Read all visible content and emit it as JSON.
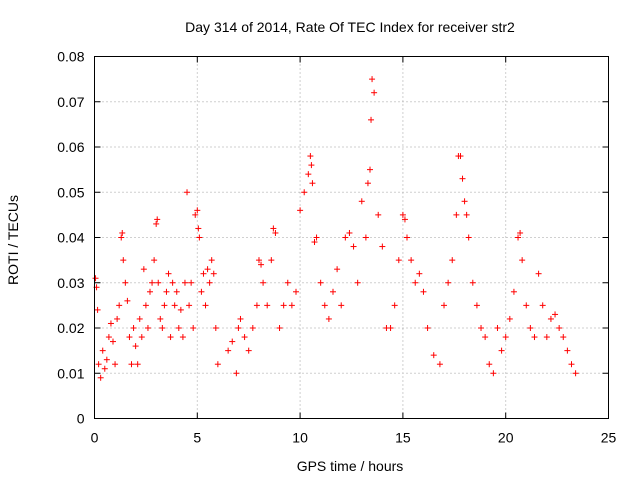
{
  "chart_data": {
    "type": "scatter",
    "title": "Day 314 of 2014, Rate Of TEC Index for receiver str2",
    "xlabel": "GPS time / hours",
    "ylabel": "ROTI / TECUs",
    "xlim": [
      0,
      25
    ],
    "ylim": [
      0,
      0.08
    ],
    "xticks": [
      0,
      5,
      10,
      15,
      20,
      25
    ],
    "yticks": [
      0,
      0.01,
      0.02,
      0.03,
      0.04,
      0.05,
      0.06,
      0.07,
      0.08
    ],
    "xtick_labels": [
      "0",
      "5",
      "10",
      "15",
      "20",
      "25"
    ],
    "ytick_labels": [
      "0",
      "0.01",
      "0.02",
      "0.03",
      "0.04",
      "0.05",
      "0.06",
      "0.07",
      "0.08"
    ],
    "grid": true,
    "marker": "+",
    "color": "#ff0000",
    "series": [
      {
        "name": "str2",
        "x": [
          0.05,
          0.1,
          0.15,
          0.2,
          0.3,
          0.4,
          0.5,
          0.6,
          0.7,
          0.8,
          0.9,
          1.0,
          1.1,
          1.2,
          1.3,
          1.35,
          1.4,
          1.5,
          1.6,
          1.7,
          1.8,
          1.9,
          2.0,
          2.1,
          2.2,
          2.3,
          2.4,
          2.5,
          2.6,
          2.7,
          2.8,
          2.9,
          3.0,
          3.05,
          3.1,
          3.2,
          3.3,
          3.4,
          3.5,
          3.6,
          3.7,
          3.8,
          3.9,
          4.0,
          4.1,
          4.2,
          4.3,
          4.4,
          4.5,
          4.6,
          4.7,
          4.8,
          4.9,
          5.0,
          5.05,
          5.1,
          5.2,
          5.3,
          5.4,
          5.5,
          5.6,
          5.7,
          5.8,
          5.9,
          6.0,
          6.5,
          6.7,
          6.9,
          7.0,
          7.1,
          7.3,
          7.5,
          7.7,
          7.9,
          8.0,
          8.1,
          8.2,
          8.4,
          8.6,
          8.7,
          8.8,
          9.0,
          9.2,
          9.4,
          9.6,
          9.8,
          10.0,
          10.2,
          10.4,
          10.5,
          10.55,
          10.6,
          10.7,
          10.8,
          11.0,
          11.2,
          11.4,
          11.6,
          11.8,
          12.0,
          12.2,
          12.4,
          12.6,
          12.8,
          13.0,
          13.2,
          13.3,
          13.4,
          13.45,
          13.5,
          13.6,
          13.8,
          14.0,
          14.2,
          14.4,
          14.6,
          14.8,
          15.0,
          15.1,
          15.2,
          15.4,
          15.6,
          15.8,
          16.0,
          16.2,
          16.5,
          16.8,
          17.0,
          17.2,
          17.4,
          17.6,
          17.7,
          17.8,
          17.9,
          18.0,
          18.1,
          18.2,
          18.4,
          18.6,
          18.8,
          19.0,
          19.2,
          19.4,
          19.6,
          19.8,
          20.0,
          20.2,
          20.4,
          20.6,
          20.7,
          20.8,
          21.0,
          21.2,
          21.4,
          21.6,
          21.8,
          22.0,
          22.2,
          22.4,
          22.6,
          22.8,
          23.0,
          23.2,
          23.4
        ],
        "y": [
          0.031,
          0.029,
          0.024,
          0.012,
          0.009,
          0.015,
          0.011,
          0.013,
          0.018,
          0.021,
          0.017,
          0.012,
          0.022,
          0.025,
          0.04,
          0.041,
          0.035,
          0.03,
          0.026,
          0.018,
          0.012,
          0.02,
          0.016,
          0.012,
          0.022,
          0.018,
          0.033,
          0.025,
          0.02,
          0.028,
          0.03,
          0.035,
          0.043,
          0.044,
          0.03,
          0.022,
          0.02,
          0.025,
          0.028,
          0.032,
          0.018,
          0.03,
          0.025,
          0.028,
          0.02,
          0.024,
          0.018,
          0.03,
          0.05,
          0.025,
          0.03,
          0.02,
          0.045,
          0.046,
          0.042,
          0.04,
          0.028,
          0.032,
          0.025,
          0.033,
          0.03,
          0.035,
          0.032,
          0.02,
          0.012,
          0.015,
          0.017,
          0.01,
          0.02,
          0.022,
          0.018,
          0.015,
          0.02,
          0.025,
          0.035,
          0.034,
          0.03,
          0.025,
          0.035,
          0.042,
          0.041,
          0.02,
          0.025,
          0.03,
          0.025,
          0.028,
          0.046,
          0.05,
          0.054,
          0.058,
          0.056,
          0.052,
          0.039,
          0.04,
          0.03,
          0.025,
          0.022,
          0.028,
          0.033,
          0.025,
          0.04,
          0.041,
          0.038,
          0.03,
          0.048,
          0.04,
          0.052,
          0.055,
          0.066,
          0.075,
          0.072,
          0.045,
          0.038,
          0.02,
          0.02,
          0.025,
          0.035,
          0.045,
          0.044,
          0.04,
          0.035,
          0.03,
          0.032,
          0.028,
          0.02,
          0.014,
          0.012,
          0.025,
          0.03,
          0.035,
          0.045,
          0.058,
          0.058,
          0.053,
          0.048,
          0.045,
          0.04,
          0.03,
          0.025,
          0.02,
          0.018,
          0.012,
          0.01,
          0.02,
          0.015,
          0.018,
          0.022,
          0.028,
          0.04,
          0.041,
          0.035,
          0.025,
          0.02,
          0.018,
          0.032,
          0.025,
          0.018,
          0.022,
          0.023,
          0.02,
          0.018,
          0.015,
          0.012,
          0.01
        ]
      }
    ]
  }
}
